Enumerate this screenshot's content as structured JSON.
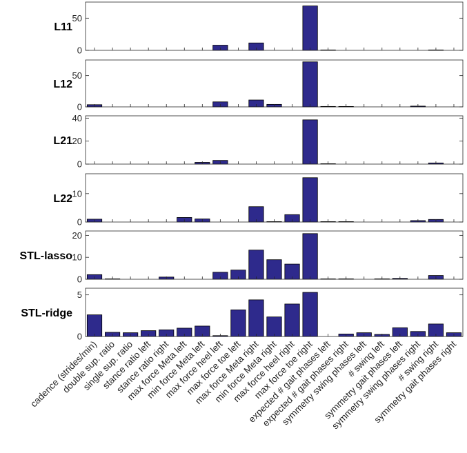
{
  "chart_data": {
    "type": "bar",
    "bar_color": "#2E2A8C",
    "categories": [
      "cadence (strides/min)",
      "double sup. ratio",
      "single sup. ratio",
      "stance ratio left",
      "stance ratio right",
      "max force Meta left",
      "min force Meta left",
      "max force heel left",
      "max force toe left",
      "max force Meta right",
      "min force Meta right",
      "max force heel right",
      "max force toe right",
      "expected # gait phases left",
      "expected # gait phases right",
      "symmetry swing phases left",
      "# swing left",
      "symmetry gait phases left",
      "symmetry swing phases right",
      "# swing right",
      "symmetry gait phases right"
    ],
    "panels": [
      {
        "label": "L11",
        "ylim": [
          0,
          75
        ],
        "yticks": [
          0,
          50
        ],
        "values": [
          0,
          0,
          0,
          0,
          0,
          0,
          0,
          8,
          0,
          11.5,
          0,
          0,
          69,
          0.5,
          0,
          0,
          0,
          0,
          0,
          0.3,
          0
        ]
      },
      {
        "label": "L12",
        "ylim": [
          0,
          75
        ],
        "yticks": [
          0,
          50
        ],
        "values": [
          3.5,
          0,
          0,
          0,
          0,
          0,
          0,
          8,
          0,
          11,
          4,
          0,
          72,
          0.7,
          0.3,
          0,
          0,
          0,
          1.2,
          0,
          0
        ]
      },
      {
        "label": "L21",
        "ylim": [
          0,
          42
        ],
        "yticks": [
          0,
          20,
          40
        ],
        "values": [
          0,
          0,
          0,
          0,
          0,
          0,
          1.5,
          3.2,
          0,
          0,
          0,
          0,
          38.5,
          0.2,
          0,
          0,
          0,
          0,
          0,
          1,
          0
        ]
      },
      {
        "label": "L22",
        "ylim": [
          0,
          17
        ],
        "yticks": [
          0,
          10
        ],
        "values": [
          1,
          0,
          0,
          0,
          0,
          1.6,
          1.1,
          0,
          0,
          5.4,
          0.1,
          2.6,
          15.6,
          0.1,
          0.1,
          0,
          0,
          0,
          0.5,
          0.9,
          0
        ]
      },
      {
        "label": "STL-lasso",
        "ylim": [
          0,
          22
        ],
        "yticks": [
          0,
          10,
          20
        ],
        "values": [
          2.1,
          0.2,
          0,
          0,
          1,
          0,
          0,
          3.2,
          4.2,
          13.3,
          8.9,
          6.9,
          20.8,
          0.1,
          0.2,
          0,
          0.2,
          0.4,
          0,
          1.7,
          0
        ]
      },
      {
        "label": "STL-ridge",
        "ylim": [
          0,
          5.8
        ],
        "yticks": [
          0,
          5
        ],
        "values": [
          2.6,
          0.5,
          0.45,
          0.7,
          0.8,
          1.0,
          1.25,
          0.1,
          3.2,
          4.4,
          2.35,
          3.9,
          5.3,
          0,
          0.3,
          0.45,
          0.25,
          1.05,
          0.6,
          1.5,
          0.45
        ]
      }
    ]
  }
}
